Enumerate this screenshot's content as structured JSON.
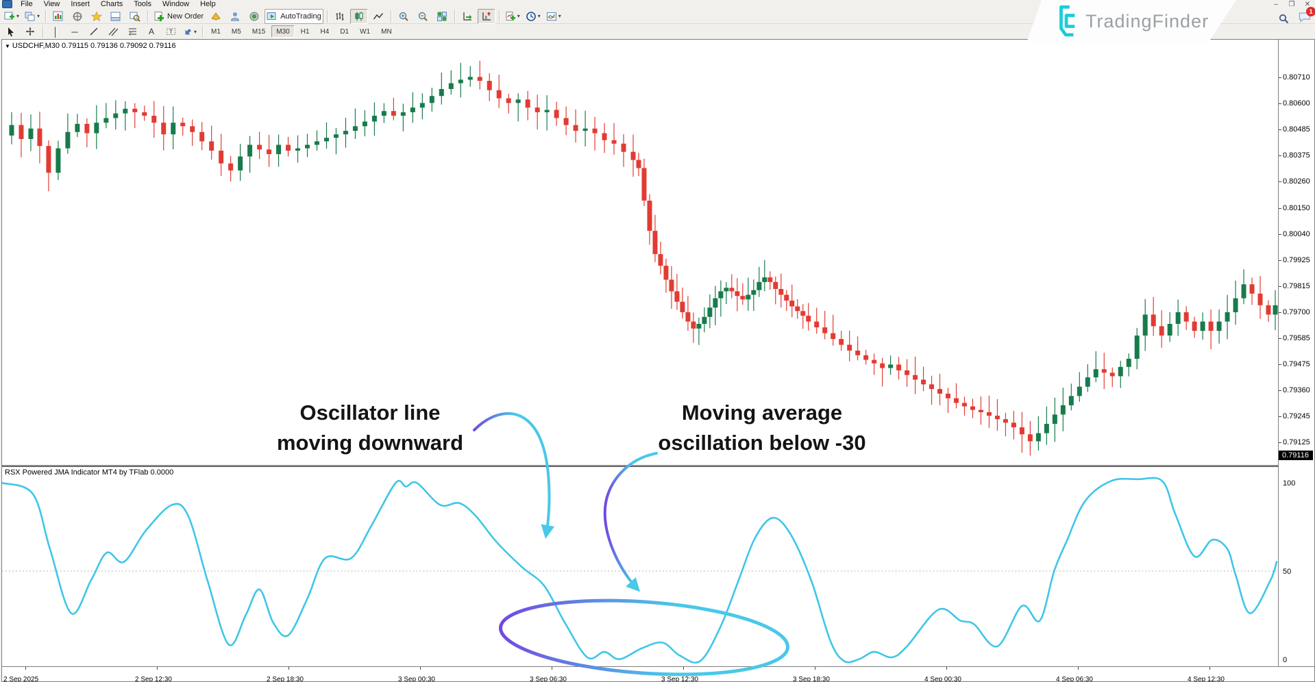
{
  "menubar": {
    "items": [
      "File",
      "View",
      "Insert",
      "Charts",
      "Tools",
      "Window",
      "Help"
    ]
  },
  "toolbar": {
    "new_order_label": "New Order",
    "autotrading_label": "AutoTrading",
    "icon_names": [
      "new-chart",
      "profiles",
      "market-watch",
      "data-window",
      "navigator",
      "terminal",
      "strategy-tester",
      "new-order",
      "metaeditor",
      "experts",
      "notifications",
      "autotrading",
      "bar-chart",
      "candlestick-chart",
      "line-chart",
      "zoom-in",
      "zoom-out",
      "tile-windows",
      "auto-scroll",
      "chart-shift",
      "indicators",
      "periods",
      "templates"
    ],
    "draw_icon_names": [
      "cursor",
      "crosshair",
      "vertical-line",
      "horizontal-line",
      "trendline",
      "channel",
      "fibonacci",
      "text",
      "text-label",
      "shapes"
    ]
  },
  "timeframe_bar": {
    "timeframes": [
      "M1",
      "M5",
      "M15",
      "M30",
      "H1",
      "H4",
      "D1",
      "W1",
      "MN"
    ],
    "active": "M30"
  },
  "watermark": {
    "brand": "TradingFinder"
  },
  "window_controls": {
    "minimize": "–",
    "restore": "❐",
    "close": "✕",
    "notification_count": "1"
  },
  "chart": {
    "symbol_line": "USDCHF,M30   0.79115 0.79136 0.79092 0.79116",
    "dropdown_glyph": "▼",
    "current_price": "0.79116"
  },
  "indicator": {
    "label": "RSX Powered JMA Indicator MT4 by TFlab 0.0000"
  },
  "annotations": {
    "note1_line1": "Oscillator line",
    "note1_line2": "moving downward",
    "note2_line1": "Moving average",
    "note2_line2": "oscillation below -30"
  },
  "colors": {
    "candle_up": "#177b4b",
    "candle_down": "#e23b33",
    "oscillator": "#3ec6e8",
    "accent_purple": "#7348e0",
    "accent_cyan": "#49c8e8"
  },
  "chart_data": [
    {
      "type": "candlestick",
      "title": "USDCHF,M30",
      "ohlc": {
        "open": "0.79115",
        "high": "0.79136",
        "low": "0.79092",
        "close": "0.79116"
      },
      "current_price": "0.79116",
      "ylim": [
        0.79092,
        0.80715
      ],
      "y_axis_labels": [
        "0.80710",
        "0.80600",
        "0.80485",
        "0.80375",
        "0.80260",
        "0.80150",
        "0.80040",
        "0.79925",
        "0.79815",
        "0.79700",
        "0.79585",
        "0.79475",
        "0.79360",
        "0.79245",
        "0.79125"
      ],
      "x_axis_labels": [
        "2 Sep 2025",
        "2 Sep 12:30",
        "2 Sep 18:30",
        "3 Sep 00:30",
        "3 Sep 06:30",
        "3 Sep 12:30",
        "3 Sep 18:30",
        "4 Sep 00:30",
        "4 Sep 06:30",
        "4 Sep 12:30"
      ],
      "price_path": [
        [
          0,
          0.8046
        ],
        [
          14,
          0.80505
        ],
        [
          28,
          0.80445
        ],
        [
          42,
          0.8049
        ],
        [
          55,
          0.80415
        ],
        [
          68,
          0.803
        ],
        [
          82,
          0.80405
        ],
        [
          96,
          0.80475
        ],
        [
          110,
          0.8051
        ],
        [
          124,
          0.8047
        ],
        [
          138,
          0.80515
        ],
        [
          152,
          0.80535
        ],
        [
          166,
          0.80555
        ],
        [
          180,
          0.80575
        ],
        [
          194,
          0.8056
        ],
        [
          208,
          0.80545
        ],
        [
          222,
          0.80515
        ],
        [
          236,
          0.80465
        ],
        [
          250,
          0.80515
        ],
        [
          264,
          0.805
        ],
        [
          278,
          0.80475
        ],
        [
          292,
          0.80435
        ],
        [
          306,
          0.80395
        ],
        [
          320,
          0.8034
        ],
        [
          334,
          0.8031
        ],
        [
          348,
          0.8037
        ],
        [
          362,
          0.8042
        ],
        [
          376,
          0.804
        ],
        [
          390,
          0.8038
        ],
        [
          404,
          0.8042
        ],
        [
          418,
          0.80395
        ],
        [
          432,
          0.80405
        ],
        [
          446,
          0.8042
        ],
        [
          460,
          0.80435
        ],
        [
          474,
          0.8045
        ],
        [
          488,
          0.80465
        ],
        [
          502,
          0.8048
        ],
        [
          516,
          0.805
        ],
        [
          530,
          0.8052
        ],
        [
          544,
          0.80545
        ],
        [
          558,
          0.80565
        ],
        [
          572,
          0.80545
        ],
        [
          586,
          0.8056
        ],
        [
          600,
          0.8058
        ],
        [
          614,
          0.806
        ],
        [
          628,
          0.8063
        ],
        [
          642,
          0.8066
        ],
        [
          656,
          0.80685
        ],
        [
          670,
          0.807
        ],
        [
          684,
          0.80712
        ],
        [
          698,
          0.80695
        ],
        [
          712,
          0.80655
        ],
        [
          726,
          0.8062
        ],
        [
          740,
          0.806
        ],
        [
          754,
          0.80615
        ],
        [
          768,
          0.8058
        ],
        [
          782,
          0.8056
        ],
        [
          796,
          0.8057
        ],
        [
          810,
          0.80535
        ],
        [
          824,
          0.80505
        ],
        [
          838,
          0.8048
        ],
        [
          852,
          0.8049
        ],
        [
          866,
          0.8047
        ],
        [
          880,
          0.8044
        ],
        [
          894,
          0.80425
        ],
        [
          908,
          0.8039
        ],
        [
          922,
          0.80355
        ],
        [
          930,
          0.8032
        ],
        [
          938,
          0.8018
        ],
        [
          946,
          0.8005
        ],
        [
          954,
          0.7995
        ],
        [
          962,
          0.799
        ],
        [
          970,
          0.7984
        ],
        [
          978,
          0.7979
        ],
        [
          986,
          0.79745
        ],
        [
          994,
          0.797
        ],
        [
          1002,
          0.7966
        ],
        [
          1010,
          0.7963
        ],
        [
          1018,
          0.7965
        ],
        [
          1026,
          0.7968
        ],
        [
          1034,
          0.7972
        ],
        [
          1042,
          0.7976
        ],
        [
          1050,
          0.7979
        ],
        [
          1058,
          0.79805
        ],
        [
          1066,
          0.7979
        ],
        [
          1074,
          0.7977
        ],
        [
          1082,
          0.79755
        ],
        [
          1090,
          0.79775
        ],
        [
          1098,
          0.79795
        ],
        [
          1106,
          0.7983
        ],
        [
          1114,
          0.7985
        ],
        [
          1122,
          0.7983
        ],
        [
          1130,
          0.798
        ],
        [
          1138,
          0.79775
        ],
        [
          1146,
          0.7975
        ],
        [
          1154,
          0.79725
        ],
        [
          1162,
          0.79705
        ],
        [
          1170,
          0.79685
        ],
        [
          1178,
          0.7966
        ],
        [
          1190,
          0.79635
        ],
        [
          1202,
          0.7961
        ],
        [
          1214,
          0.79585
        ],
        [
          1226,
          0.7956
        ],
        [
          1238,
          0.79535
        ],
        [
          1250,
          0.79515
        ],
        [
          1262,
          0.79495
        ],
        [
          1274,
          0.7948
        ],
        [
          1286,
          0.7946
        ],
        [
          1298,
          0.79475
        ],
        [
          1310,
          0.7945
        ],
        [
          1322,
          0.7943
        ],
        [
          1334,
          0.7941
        ],
        [
          1346,
          0.7939
        ],
        [
          1358,
          0.7937
        ],
        [
          1370,
          0.7935
        ],
        [
          1382,
          0.7933
        ],
        [
          1394,
          0.7931
        ],
        [
          1406,
          0.79295
        ],
        [
          1418,
          0.7928
        ],
        [
          1430,
          0.7927
        ],
        [
          1442,
          0.79255
        ],
        [
          1454,
          0.7924
        ],
        [
          1466,
          0.79225
        ],
        [
          1478,
          0.79205
        ],
        [
          1490,
          0.79175
        ],
        [
          1502,
          0.79145
        ],
        [
          1514,
          0.7918
        ],
        [
          1526,
          0.7922
        ],
        [
          1538,
          0.7926
        ],
        [
          1550,
          0.793
        ],
        [
          1562,
          0.7934
        ],
        [
          1574,
          0.7938
        ],
        [
          1586,
          0.7942
        ],
        [
          1598,
          0.79455
        ],
        [
          1610,
          0.7944
        ],
        [
          1622,
          0.79425
        ],
        [
          1634,
          0.79465
        ],
        [
          1646,
          0.795
        ],
        [
          1658,
          0.796
        ],
        [
          1670,
          0.7969
        ],
        [
          1682,
          0.7964
        ],
        [
          1694,
          0.796
        ],
        [
          1706,
          0.7965
        ],
        [
          1718,
          0.797
        ],
        [
          1730,
          0.7966
        ],
        [
          1742,
          0.7962
        ],
        [
          1754,
          0.7966
        ],
        [
          1766,
          0.7962
        ],
        [
          1778,
          0.7966
        ],
        [
          1790,
          0.797
        ],
        [
          1802,
          0.7976
        ],
        [
          1814,
          0.7982
        ],
        [
          1826,
          0.7978
        ],
        [
          1838,
          0.7973
        ],
        [
          1850,
          0.7969
        ],
        [
          1860,
          0.7973
        ]
      ]
    },
    {
      "type": "line",
      "name": "RSX Powered JMA Indicator MT4 by TFlab 0.0000",
      "color": "#3ec6e8",
      "ylim": [
        0,
        100
      ],
      "scale_labels": [
        "100",
        "50",
        "0"
      ],
      "points": [
        [
          0,
          98
        ],
        [
          45,
          92
        ],
        [
          70,
          62
        ],
        [
          101,
          27
        ],
        [
          130,
          45
        ],
        [
          153,
          60
        ],
        [
          178,
          55
        ],
        [
          210,
          72
        ],
        [
          248,
          86
        ],
        [
          272,
          80
        ],
        [
          300,
          45
        ],
        [
          331,
          10
        ],
        [
          356,
          26
        ],
        [
          376,
          40
        ],
        [
          396,
          22
        ],
        [
          418,
          15
        ],
        [
          446,
          35
        ],
        [
          472,
          57
        ],
        [
          510,
          57
        ],
        [
          540,
          75
        ],
        [
          575,
          98
        ],
        [
          590,
          96
        ],
        [
          606,
          98
        ],
        [
          640,
          86
        ],
        [
          668,
          87
        ],
        [
          692,
          80
        ],
        [
          722,
          66
        ],
        [
          760,
          52
        ],
        [
          792,
          42
        ],
        [
          822,
          22
        ],
        [
          855,
          3
        ],
        [
          880,
          6
        ],
        [
          902,
          2
        ],
        [
          935,
          8
        ],
        [
          965,
          11
        ],
        [
          990,
          4
        ],
        [
          1020,
          1
        ],
        [
          1050,
          20
        ],
        [
          1076,
          45
        ],
        [
          1100,
          68
        ],
        [
          1126,
          79
        ],
        [
          1152,
          70
        ],
        [
          1182,
          45
        ],
        [
          1210,
          12
        ],
        [
          1230,
          1
        ],
        [
          1252,
          2
        ],
        [
          1274,
          6
        ],
        [
          1300,
          3
        ],
        [
          1322,
          9
        ],
        [
          1368,
          29
        ],
        [
          1400,
          23
        ],
        [
          1420,
          21
        ],
        [
          1454,
          9
        ],
        [
          1490,
          31
        ],
        [
          1516,
          23
        ],
        [
          1537,
          50
        ],
        [
          1555,
          66
        ],
        [
          1582,
          88
        ],
        [
          1620,
          99
        ],
        [
          1660,
          100
        ],
        [
          1695,
          99
        ],
        [
          1714,
          81
        ],
        [
          1742,
          58
        ],
        [
          1768,
          67
        ],
        [
          1790,
          62
        ],
        [
          1802,
          48
        ],
        [
          1823,
          27
        ],
        [
          1853,
          45
        ],
        [
          1862,
          55
        ]
      ]
    }
  ]
}
